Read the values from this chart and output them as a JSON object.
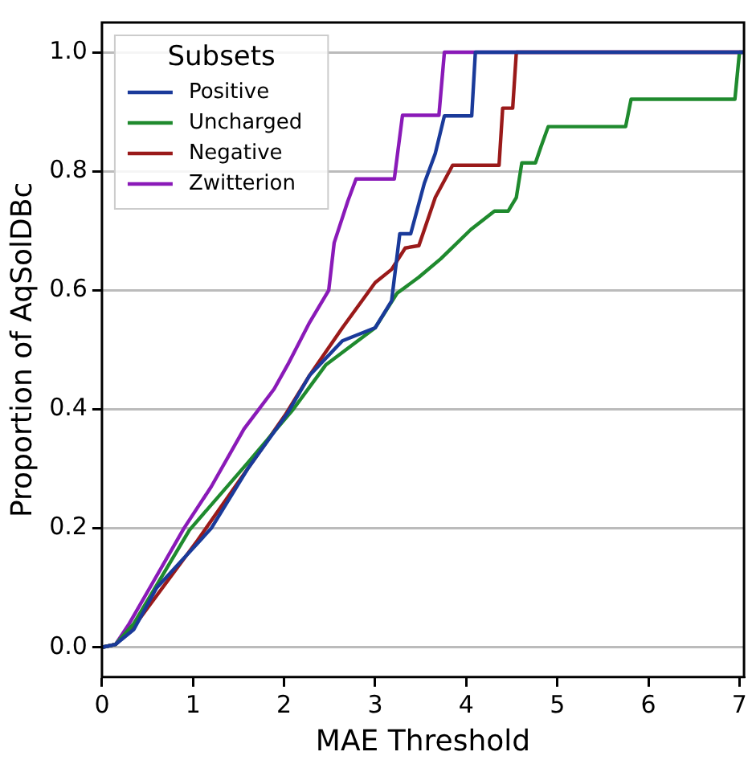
{
  "chart_data": {
    "type": "line",
    "xlabel": "MAE Threshold",
    "ylabel": "Proportion of AqSolDBc",
    "legend_title": "Subsets",
    "legend": "top left",
    "grid": "y",
    "marker": "none",
    "xlim": [
      0,
      7.05
    ],
    "xticks": [
      0,
      1,
      2,
      3,
      4,
      5,
      6,
      7
    ],
    "ylim": [
      -0.05,
      1.05
    ],
    "yticks": [
      {
        "value": 0,
        "label": "0.0"
      },
      {
        "value": 0.2,
        "label": "0.2"
      },
      {
        "value": 0.4,
        "label": "0.4"
      },
      {
        "value": 0.6,
        "label": "0.6"
      },
      {
        "value": 0.8,
        "label": "0.8"
      },
      {
        "value": 1,
        "label": "1.0"
      }
    ],
    "series": [
      {
        "name": "Positive",
        "color": "#1a3a9a",
        "x": [
          0,
          0.15,
          0.35,
          0.6,
          1.2,
          1.6,
          2.04,
          2.28,
          2.64,
          3.0,
          3.18,
          3.27,
          3.39,
          3.54,
          3.66,
          3.76,
          4.06,
          4.1,
          7.05
        ],
        "values": [
          0,
          0.005,
          0.03,
          0.1,
          0.2,
          0.3,
          0.394,
          0.457,
          0.515,
          0.537,
          0.582,
          0.695,
          0.695,
          0.78,
          0.83,
          0.893,
          0.893,
          1.0,
          1.0
        ]
      },
      {
        "name": "Uncharged",
        "color": "#1f8a2e",
        "x": [
          0,
          0.15,
          0.35,
          0.96,
          1.6,
          2.1,
          2.46,
          3.0,
          3.24,
          3.48,
          3.72,
          4.05,
          4.31,
          4.46,
          4.55,
          4.61,
          4.76,
          4.82,
          4.9,
          5.75,
          5.81,
          6.95,
          7.0,
          7.05
        ],
        "values": [
          0,
          0.005,
          0.04,
          0.197,
          0.31,
          0.4,
          0.475,
          0.537,
          0.595,
          0.622,
          0.653,
          0.702,
          0.733,
          0.733,
          0.756,
          0.814,
          0.814,
          0.841,
          0.875,
          0.875,
          0.921,
          0.921,
          1.0,
          1.0
        ]
      },
      {
        "name": "Negative",
        "color": "#9a1a1a",
        "x": [
          0,
          0.15,
          0.35,
          1.05,
          1.6,
          2.01,
          2.28,
          2.64,
          3.0,
          3.18,
          3.33,
          3.48,
          3.66,
          3.85,
          4.36,
          4.4,
          4.51,
          4.55,
          7.05
        ],
        "values": [
          0,
          0.005,
          0.035,
          0.18,
          0.3,
          0.39,
          0.457,
          0.537,
          0.613,
          0.635,
          0.671,
          0.675,
          0.756,
          0.81,
          0.81,
          0.906,
          0.906,
          1.0,
          1.0
        ]
      },
      {
        "name": "Zwitterion",
        "color": "#8a1ab8",
        "x": [
          0,
          0.15,
          0.3,
          0.54,
          0.9,
          1.2,
          1.56,
          1.89,
          2.04,
          2.28,
          2.49,
          2.55,
          2.7,
          2.79,
          3.21,
          3.3,
          3.7,
          3.76,
          7.05
        ],
        "values": [
          0,
          0.005,
          0.04,
          0.104,
          0.2,
          0.27,
          0.367,
          0.434,
          0.475,
          0.546,
          0.6,
          0.68,
          0.75,
          0.787,
          0.787,
          0.894,
          0.894,
          1.0,
          1.0
        ]
      }
    ]
  }
}
